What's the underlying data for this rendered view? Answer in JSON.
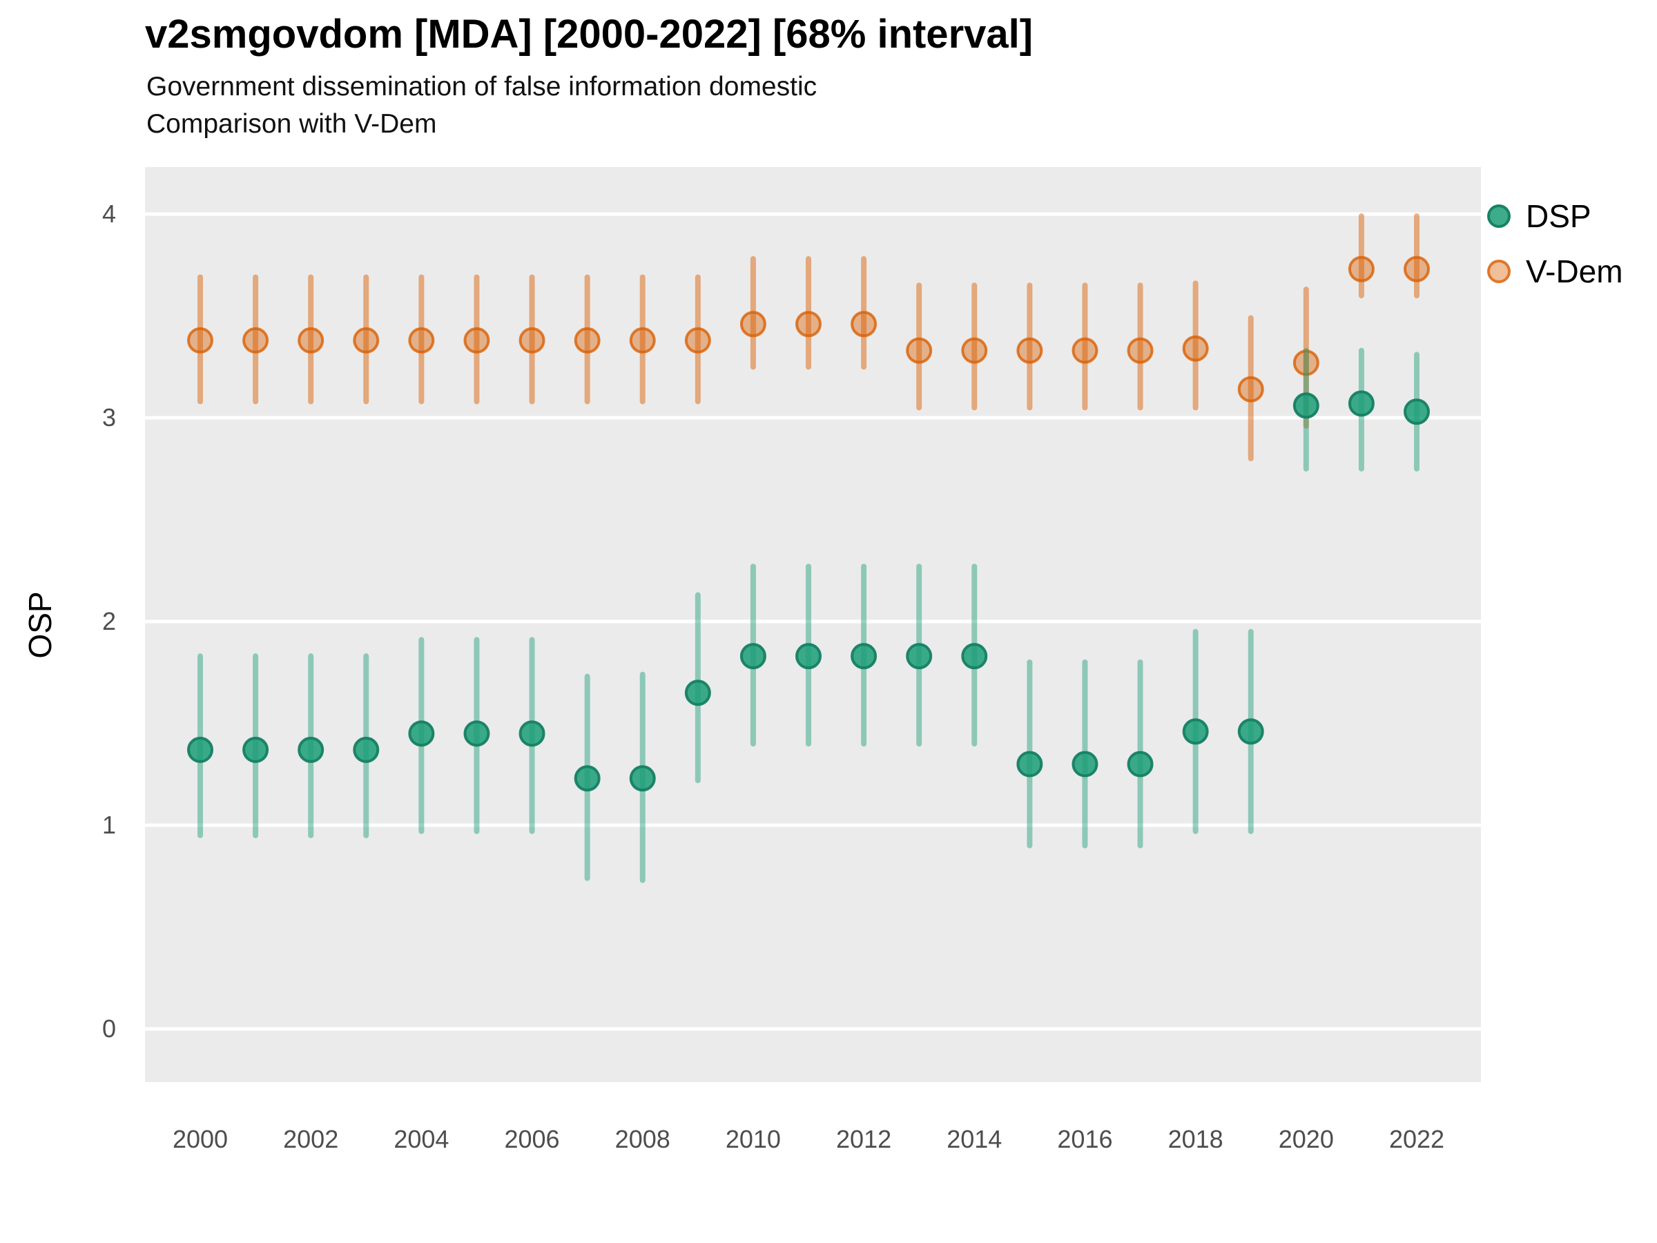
{
  "page": {
    "background": "#ffffff"
  },
  "chart_data": {
    "type": "scatter",
    "variant": "pointrange-errorbar",
    "title": "v2smgovdom [MDA] [2000-2022] [68% interval]",
    "subtitle1": "Government dissemination of false information domestic",
    "subtitle2": "Comparison with V-Dem",
    "ylabel": "OSP",
    "xlabel": "",
    "interval_label": "68% interval",
    "grid": "major-horizontal",
    "legend_position": "right-top",
    "panel_background": "#ebebeb",
    "gridline_color": "#ffffff",
    "axis_text_color": "#4d4d4d",
    "ylim": [
      -0.26,
      4.32
    ],
    "y_ticks": [
      0,
      1,
      2,
      3,
      4
    ],
    "x": [
      2000,
      2001,
      2002,
      2003,
      2004,
      2005,
      2006,
      2007,
      2008,
      2009,
      2010,
      2011,
      2012,
      2013,
      2014,
      2015,
      2016,
      2017,
      2018,
      2019,
      2020,
      2021,
      2022
    ],
    "x_tick_labels": [
      "2000",
      "2002",
      "2004",
      "2006",
      "2008",
      "2010",
      "2012",
      "2014",
      "2016",
      "2018",
      "2020",
      "2022"
    ],
    "series": [
      {
        "name": "DSP",
        "color": "#1b9e77",
        "means": [
          1.37,
          1.37,
          1.37,
          1.37,
          1.45,
          1.45,
          1.45,
          1.23,
          1.23,
          1.65,
          1.83,
          1.83,
          1.83,
          1.83,
          1.83,
          1.3,
          1.3,
          1.3,
          1.46,
          1.46,
          3.06,
          3.07,
          3.03
        ],
        "lower": [
          0.95,
          0.95,
          0.95,
          0.95,
          0.97,
          0.97,
          0.97,
          0.74,
          0.73,
          1.22,
          1.4,
          1.4,
          1.4,
          1.4,
          1.4,
          0.9,
          0.9,
          0.9,
          0.97,
          0.97,
          2.75,
          2.75,
          2.75
        ],
        "upper": [
          1.83,
          1.83,
          1.83,
          1.83,
          1.91,
          1.91,
          1.91,
          1.73,
          1.74,
          2.13,
          2.27,
          2.27,
          2.27,
          2.27,
          2.27,
          1.8,
          1.8,
          1.8,
          1.95,
          1.95,
          3.33,
          3.33,
          3.31
        ]
      },
      {
        "name": "V-Dem",
        "color": "#d95f02",
        "means": [
          3.38,
          3.38,
          3.38,
          3.38,
          3.38,
          3.38,
          3.38,
          3.38,
          3.38,
          3.38,
          3.46,
          3.46,
          3.46,
          3.33,
          3.33,
          3.33,
          3.33,
          3.33,
          3.34,
          3.14,
          3.27,
          3.73,
          3.73
        ],
        "lower": [
          3.08,
          3.08,
          3.08,
          3.08,
          3.08,
          3.08,
          3.08,
          3.08,
          3.08,
          3.08,
          3.25,
          3.25,
          3.25,
          3.05,
          3.05,
          3.05,
          3.05,
          3.05,
          3.05,
          2.8,
          2.96,
          3.6,
          3.6
        ],
        "upper": [
          3.69,
          3.69,
          3.69,
          3.69,
          3.69,
          3.69,
          3.69,
          3.69,
          3.69,
          3.69,
          3.78,
          3.78,
          3.78,
          3.65,
          3.65,
          3.65,
          3.65,
          3.65,
          3.66,
          3.49,
          3.63,
          3.99,
          3.99
        ]
      }
    ]
  }
}
